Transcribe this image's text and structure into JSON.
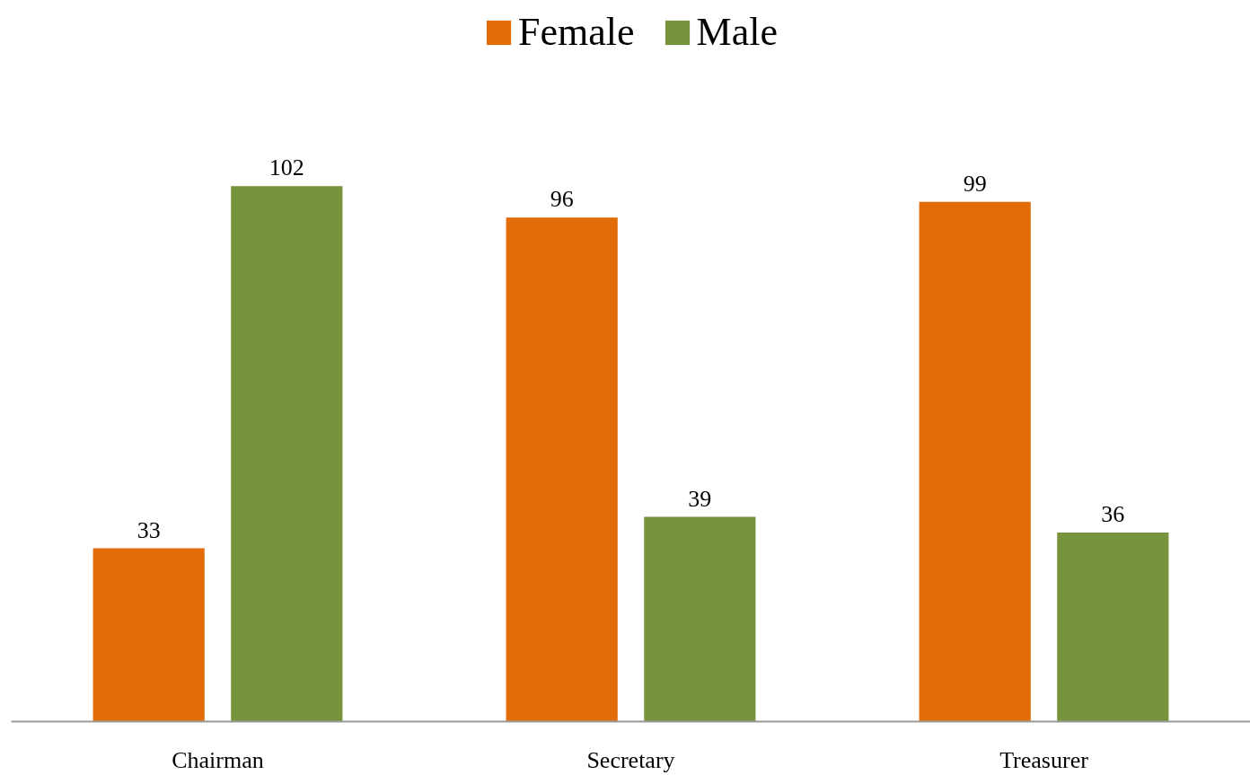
{
  "chart_data": {
    "type": "bar",
    "categories": [
      "Chairman",
      "Secretary",
      "Treasurer"
    ],
    "series": [
      {
        "name": "Female",
        "color": "#e36c0a",
        "values": [
          33,
          96,
          99
        ]
      },
      {
        "name": "Male",
        "color": "#77933c",
        "values": [
          102,
          39,
          36
        ]
      }
    ],
    "data_labels": true,
    "legend": "top",
    "grid": false
  }
}
